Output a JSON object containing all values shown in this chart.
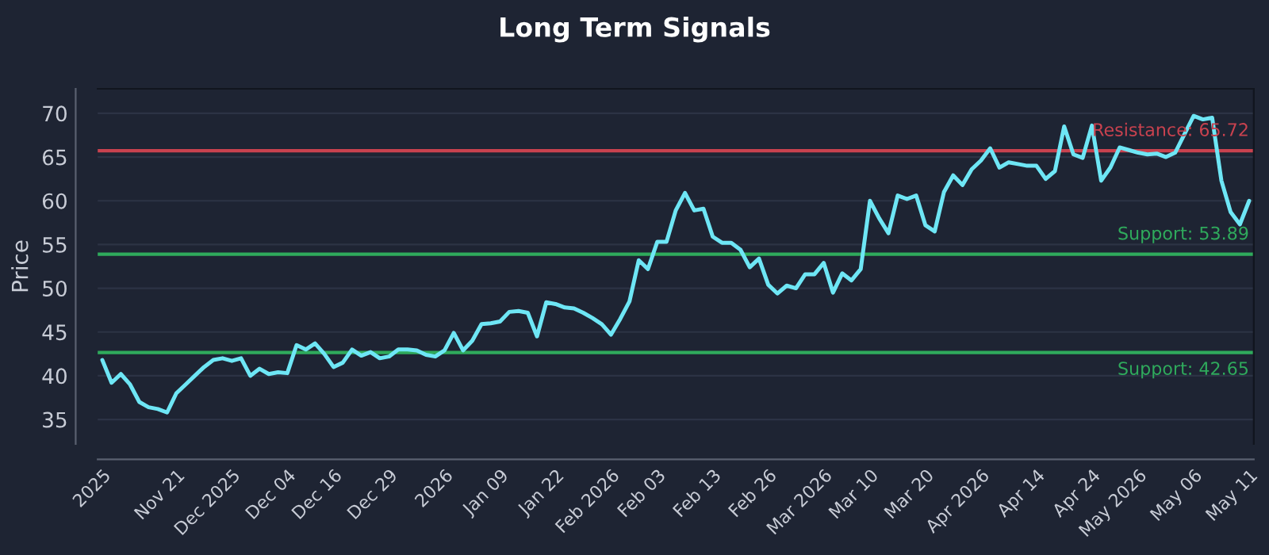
{
  "chart_data": {
    "type": "line",
    "title": "Long Term Signals",
    "ylabel": "Price",
    "categories": [
      "2025",
      null,
      null,
      null,
      null,
      null,
      null,
      null,
      "Nov 21",
      null,
      null,
      null,
      null,
      null,
      "Dec 2025",
      null,
      null,
      null,
      null,
      null,
      "Dec 04",
      null,
      null,
      null,
      null,
      "Dec 16",
      null,
      null,
      null,
      null,
      null,
      "Dec 29",
      null,
      null,
      null,
      null,
      null,
      "2026",
      null,
      null,
      null,
      null,
      null,
      "Jan 09",
      null,
      null,
      null,
      null,
      null,
      "Jan 22",
      null,
      null,
      null,
      null,
      null,
      "Feb 2026",
      null,
      null,
      null,
      null,
      "Feb 03",
      null,
      null,
      null,
      null,
      null,
      "Feb 13",
      null,
      null,
      null,
      null,
      null,
      "Feb 26",
      null,
      null,
      null,
      null,
      null,
      "Mar 2026",
      null,
      null,
      null,
      null,
      "Mar 10",
      null,
      null,
      null,
      null,
      null,
      "Mar 20",
      null,
      null,
      null,
      null,
      null,
      "Apr 2026",
      null,
      null,
      null,
      null,
      null,
      "Apr 14",
      null,
      null,
      null,
      null,
      null,
      "Apr 24",
      null,
      null,
      null,
      null,
      "May 2026",
      null,
      null,
      null,
      null,
      null,
      "May 06",
      null,
      null,
      null,
      null,
      null,
      "May 11"
    ],
    "series": [
      {
        "color": "#6ee6f5",
        "values": [
          41.8,
          39.2,
          40.2,
          39,
          37,
          36.4,
          36.2,
          35.8,
          38,
          39,
          40,
          41,
          41.8,
          42,
          41.7,
          42,
          40,
          40.8,
          40.2,
          40.4,
          40.3,
          43.5,
          43,
          43.7,
          42.5,
          41,
          41.5,
          43,
          42.3,
          42.7,
          42,
          42.2,
          43,
          43,
          42.9,
          42.4,
          42.2,
          42.9,
          44.9,
          42.9,
          44,
          45.9,
          46,
          46.2,
          47.3,
          47.4,
          47.2,
          44.5,
          48.4,
          48.2,
          47.8,
          47.7,
          47.2,
          46.6,
          45.9,
          44.7,
          46.5,
          48.5,
          53.2,
          52.2,
          55.3,
          55.3,
          58.9,
          60.9,
          58.9,
          59.1,
          55.9,
          55.2,
          55.2,
          54.4,
          52.4,
          53.4,
          50.4,
          49.4,
          50.3,
          50,
          51.6,
          51.6,
          52.9,
          49.5,
          51.7,
          50.9,
          52.2,
          60,
          58,
          56.3,
          60.6,
          60.2,
          60.6,
          57.2,
          56.5,
          61,
          62.9,
          61.8,
          63.6,
          64.6,
          66,
          63.8,
          64.4,
          64.2,
          64,
          64,
          62.5,
          63.4,
          68.5,
          65.3,
          64.9,
          68.6,
          62.3,
          63.8,
          66.1,
          65.8,
          65.5,
          65.3,
          65.4,
          65,
          65.5,
          67.6,
          69.7,
          69.3,
          69.5,
          62.3,
          58.7,
          57.3,
          60
        ]
      }
    ],
    "ylim": [
      32.2,
      72.8
    ],
    "yticks": [
      35,
      40,
      45,
      50,
      55,
      60,
      65,
      70
    ],
    "grid": "y",
    "ref_lines": [
      {
        "axis": "y",
        "value": 65.72,
        "label": "Resistance: 65.72",
        "color": "#c9424f"
      },
      {
        "axis": "y",
        "value": 53.89,
        "label": "Support: 53.89",
        "color": "#2faa5c"
      },
      {
        "axis": "y",
        "value": 42.65,
        "label": "Support: 42.65",
        "color": "#2faa5c"
      }
    ]
  }
}
